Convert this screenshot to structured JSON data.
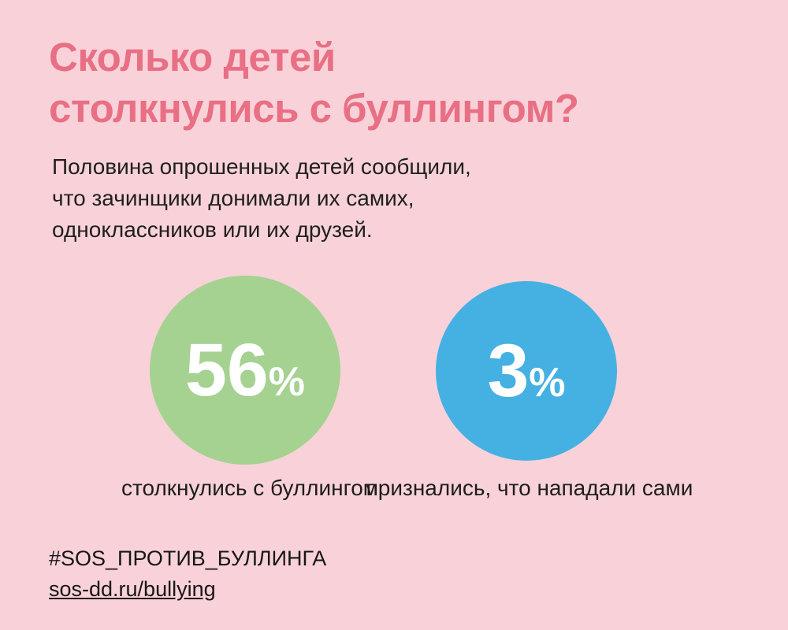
{
  "title": {
    "line1": "Сколько детей",
    "line2": "столкнулись с буллингом?"
  },
  "intro": {
    "lines": [
      "Половина опрошенных детей сообщили,",
      "что зачинщики донимали их самих,",
      "одноклассников или их друзей."
    ]
  },
  "stats": [
    {
      "value": "56",
      "unit": "%",
      "label": "столкнулись с буллингом",
      "color": "#a5d291"
    },
    {
      "value": "3",
      "unit": "%",
      "label": "признались, что нападали сами",
      "color": "#45b1e2"
    }
  ],
  "footer": {
    "hashtag": "#SOS_ПРОТИВ_БУЛЛИНГА",
    "link": "sos-dd.ru/bullying"
  },
  "colors": {
    "background": "#f9d2d9",
    "title": "#e96f85",
    "text": "#1f1f1f",
    "circle_green": "#a5d291",
    "circle_blue": "#45b1e2",
    "value_text": "#ffffff"
  },
  "chart_data": {
    "type": "bubble",
    "title": "Сколько детей столкнулись с буллингом?",
    "subtitle": "Половина опрошенных детей сообщили, что зачинщики донимали их самих, одноклассников или их друзей.",
    "categories": [
      "столкнулись с буллингом",
      "признались, что нападали сами"
    ],
    "values": [
      56,
      3
    ],
    "unit": "%",
    "colors": [
      "#a5d291",
      "#45b1e2"
    ],
    "legend_position": "below-each-circle",
    "grid": false
  }
}
